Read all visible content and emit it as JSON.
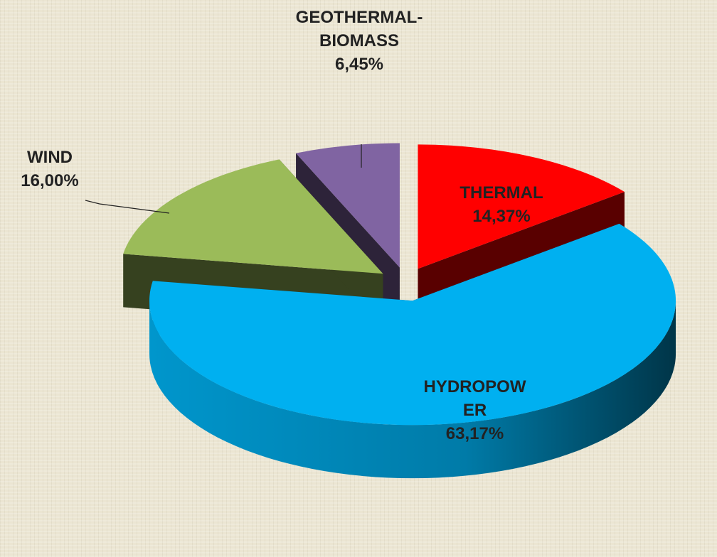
{
  "chart_data": {
    "type": "pie3d",
    "categories": [
      "THERMAL",
      "HYDROPOWER",
      "WIND",
      "GEOTHERMAL-BIOMASS"
    ],
    "values": [
      14.37,
      63.17,
      16.0,
      6.45
    ],
    "value_labels": [
      "14,37%",
      "63,17%",
      "16,00%",
      "6,45%"
    ],
    "colors": [
      "#ff0000",
      "#00b0f0",
      "#9bbb59",
      "#8064a2"
    ]
  }
}
